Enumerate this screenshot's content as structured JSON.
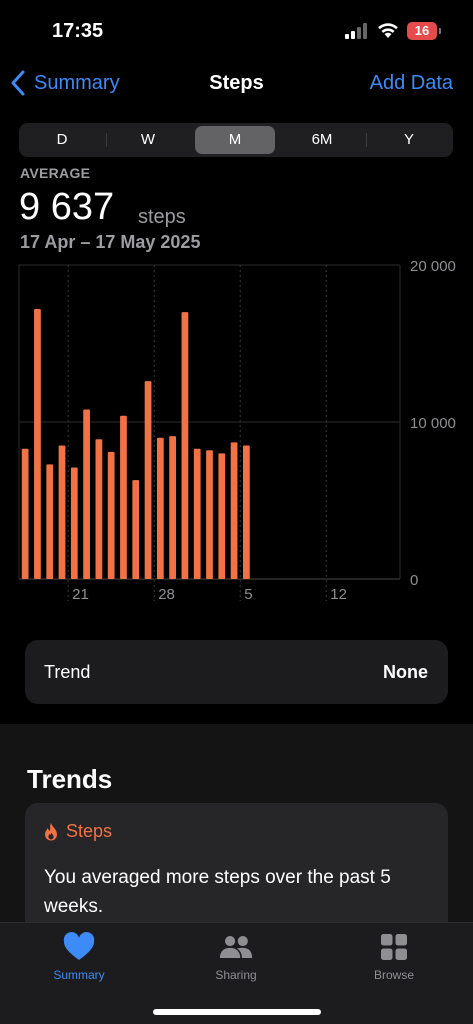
{
  "status": {
    "time": "17:35",
    "battery": "16"
  },
  "nav": {
    "back_label": "Summary",
    "title": "Steps",
    "right_label": "Add Data"
  },
  "segments": [
    "D",
    "W",
    "M",
    "6M",
    "Y"
  ],
  "selected_segment": "M",
  "summary": {
    "label": "AVERAGE",
    "value": "9 637",
    "unit": "steps",
    "range": "17 Apr – 17 May 2025"
  },
  "chart_data": {
    "type": "bar",
    "y_tick_labels": [
      "20 000",
      "10 000",
      "0"
    ],
    "y_ticks": [
      20000,
      10000,
      0
    ],
    "ylim": [
      0,
      20000
    ],
    "x_tick_labels": [
      "21",
      "28",
      "5",
      "12"
    ],
    "x_tick_day_index": [
      4,
      11,
      18,
      25
    ],
    "days_in_range": 31,
    "values": [
      8300,
      17200,
      7300,
      8500,
      7100,
      10800,
      8900,
      8100,
      10400,
      6300,
      12600,
      9000,
      9100,
      17000,
      8300,
      8200,
      8000,
      8700,
      8500
    ],
    "bar_color": "#f07245",
    "grid": true
  },
  "trend": {
    "label": "Trend",
    "value": "None"
  },
  "trends_section": {
    "title": "Trends",
    "card_title": "Steps",
    "card_text": "You averaged more steps over the past 5 weeks."
  },
  "tabs": [
    {
      "label": "Summary",
      "icon": "heart-icon",
      "active": true
    },
    {
      "label": "Sharing",
      "icon": "people-icon",
      "active": false
    },
    {
      "label": "Browse",
      "icon": "grid-icon",
      "active": false
    }
  ],
  "colors": {
    "accent": "#3d8bf7",
    "steps": "#f07245"
  }
}
